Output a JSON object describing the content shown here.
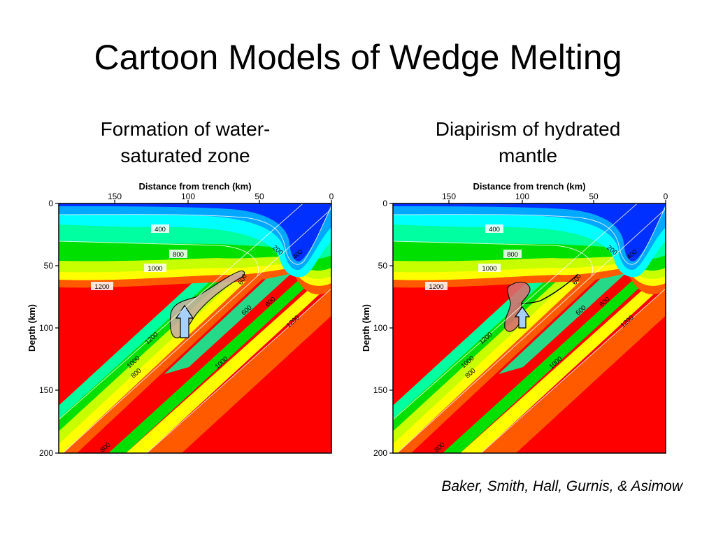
{
  "slide": {
    "title": "Cartoon Models of Wedge Melting",
    "left_caption_line1": "Formation of water-",
    "left_caption_line2": "saturated zone",
    "right_caption_line1": "Diapirism of hydrated",
    "right_caption_line2": "mantle",
    "credit": "Baker, Smith, Hall, Gurnis, & Asimow"
  },
  "panels": [
    {
      "name": "left",
      "x_axis_label": "Distance from trench (km)",
      "y_axis_label": "Depth (km)",
      "x_ticks": [
        "150",
        "100",
        "50",
        "0"
      ],
      "y_ticks": [
        "0",
        "50",
        "100",
        "150",
        "200"
      ],
      "contour_labels": [
        "400",
        "800",
        "1000",
        "1200",
        "200",
        "400",
        "600",
        "600",
        "800",
        "1200",
        "1200",
        "1000",
        "800",
        "1000",
        "800"
      ]
    },
    {
      "name": "right",
      "x_axis_label": "Distance from trench (km)",
      "y_axis_label": "Depth (km)",
      "x_ticks": [
        "150",
        "100",
        "50",
        "0"
      ],
      "y_ticks": [
        "0",
        "50",
        "100",
        "150",
        "200"
      ],
      "contour_labels": [
        "400",
        "800",
        "1000",
        "1200",
        "200",
        "400",
        "600",
        "600",
        "800",
        "1200",
        "1200",
        "1000",
        "800",
        "1000",
        "800"
      ]
    }
  ],
  "colors": {
    "red": "#ff0000",
    "orange": "#ff5a00",
    "yellow": "#ffff00",
    "green": "#00e000",
    "cyan": "#00ffff",
    "sky": "#00a8ff",
    "blue": "#0030ff"
  }
}
